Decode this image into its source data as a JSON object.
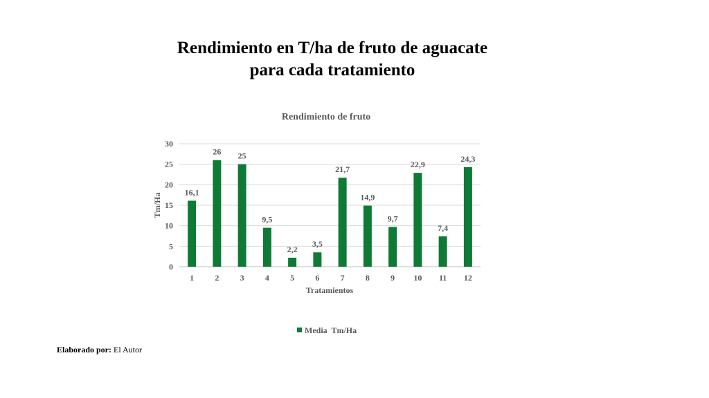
{
  "slide": {
    "title_line1": "Rendimiento en T/ha de fruto de aguacate",
    "title_line2": "para cada tratamiento"
  },
  "chart_data": {
    "type": "bar",
    "title": "Rendimiento de fruto",
    "xlabel": "Tratamientos",
    "ylabel": "Tm/Ha",
    "categories": [
      "1",
      "2",
      "3",
      "4",
      "5",
      "6",
      "7",
      "8",
      "9",
      "10",
      "11",
      "12"
    ],
    "series": [
      {
        "name": "Media  Tm/Ha",
        "values": [
          16.1,
          26,
          25,
          9.5,
          2.2,
          3.5,
          21.7,
          14.9,
          9.7,
          22.9,
          7.4,
          24.3
        ],
        "labels": [
          "16,1",
          "26",
          "25",
          "9,5",
          "2,2",
          "3,5",
          "21,7",
          "14,9",
          "9,7",
          "22,9",
          "7,4",
          "24,3"
        ]
      }
    ],
    "ylim": [
      0,
      30
    ],
    "yticks": [
      0,
      5,
      10,
      15,
      20,
      25,
      30
    ],
    "grid": true,
    "legend": "bottom",
    "colors": {
      "bar": "#0f7a35",
      "grid": "#d9d9d9",
      "text": "#595959"
    }
  },
  "footer": {
    "label": "Elaborado por:",
    "author": "El Autor"
  }
}
